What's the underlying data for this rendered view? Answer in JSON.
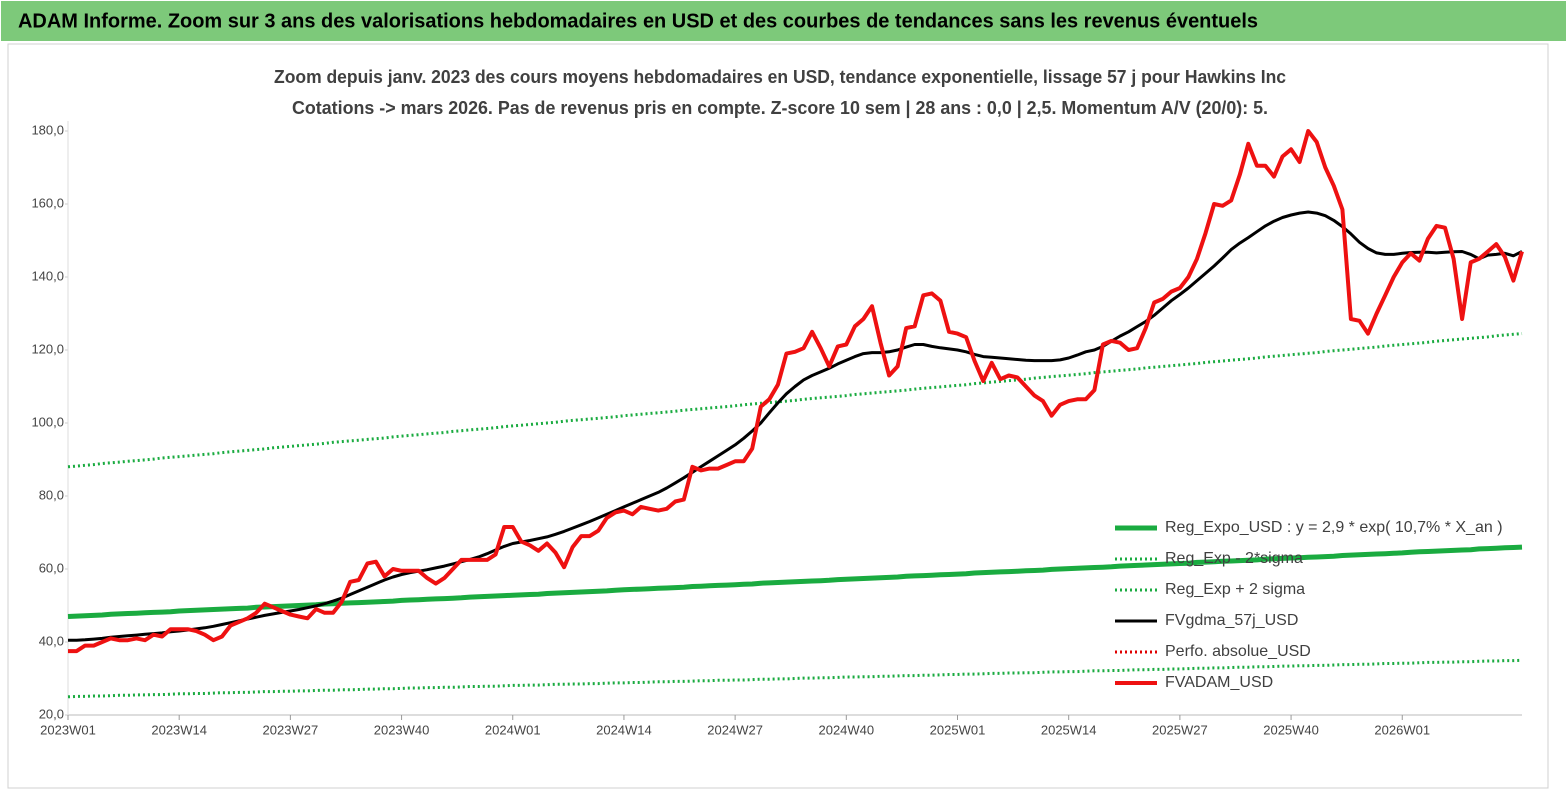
{
  "chart_data": {
    "type": "line",
    "header": "ADAM Informe. Zoom sur 3 ans des valorisations hebdomadaires en USD et des courbes de tendances sans les revenus éventuels",
    "title": "Zoom depuis janv. 2023 des cours moyens hebdomadaires en USD, tendance exponentielle, lissage 57 j pour Hawkins Inc",
    "subtitle": "Cotations -> mars 2026. Pas de revenus pris en compte. Z-score 10 sem | 28 ans : 0,0 | 2,5. Momentum A/V (20/0): 5.",
    "categories": [
      "2023W01",
      null,
      null,
      null,
      null,
      null,
      null,
      null,
      null,
      null,
      null,
      null,
      null,
      "2023W14",
      null,
      null,
      null,
      null,
      null,
      null,
      null,
      null,
      null,
      null,
      null,
      null,
      "2023W27",
      null,
      null,
      null,
      null,
      null,
      null,
      null,
      null,
      null,
      null,
      null,
      null,
      "2023W40",
      null,
      null,
      null,
      null,
      null,
      null,
      null,
      null,
      null,
      null,
      null,
      null,
      "2024W01",
      null,
      null,
      null,
      null,
      null,
      null,
      null,
      null,
      null,
      null,
      null,
      null,
      "2024W14",
      null,
      null,
      null,
      null,
      null,
      null,
      null,
      null,
      null,
      null,
      null,
      null,
      "2024W27",
      null,
      null,
      null,
      null,
      null,
      null,
      null,
      null,
      null,
      null,
      null,
      null,
      "2024W40",
      null,
      null,
      null,
      null,
      null,
      null,
      null,
      null,
      null,
      null,
      null,
      null,
      "2025W01",
      null,
      null,
      null,
      null,
      null,
      null,
      null,
      null,
      null,
      null,
      null,
      null,
      "2025W14",
      null,
      null,
      null,
      null,
      null,
      null,
      null,
      null,
      null,
      null,
      null,
      null,
      "2025W27",
      null,
      null,
      null,
      null,
      null,
      null,
      null,
      null,
      null,
      null,
      null,
      null,
      "2025W40",
      null,
      null,
      null,
      null,
      null,
      null,
      null,
      null,
      null,
      null,
      null,
      null,
      "2026W01",
      null,
      null,
      null,
      null,
      null,
      null,
      null,
      null,
      null,
      null,
      null,
      null,
      null,
      null
    ],
    "ylim": [
      20,
      180
    ],
    "yticks": [
      {
        "value": 20,
        "label": "20,0"
      },
      {
        "value": 40,
        "label": "40,0"
      },
      {
        "value": 60,
        "label": "60,0"
      },
      {
        "value": 80,
        "label": "80,0"
      },
      {
        "value": 100,
        "label": "100,0"
      },
      {
        "value": 120,
        "label": "120,0"
      },
      {
        "value": 140,
        "label": "140,0"
      },
      {
        "value": 160,
        "label": "160,0"
      },
      {
        "value": 180,
        "label": "180,0"
      }
    ],
    "grid": false,
    "legend": "right",
    "series": [
      {
        "name": "Reg_Expo_USD : y = 2,9 * exp( 10,7% *  X_an )",
        "color": "#1aab40",
        "style": "solid",
        "width": 5,
        "values": [
          47.0,
          47.1,
          47.2,
          47.3,
          47.4,
          47.6,
          47.7,
          47.8,
          47.9,
          48.0,
          48.1,
          48.2,
          48.3,
          48.5,
          48.6,
          48.7,
          48.8,
          48.9,
          49.0,
          49.1,
          49.2,
          49.3,
          49.5,
          49.6,
          49.7,
          49.8,
          49.9,
          50.0,
          50.1,
          50.2,
          50.4,
          50.5,
          50.6,
          50.7,
          50.8,
          50.9,
          51.0,
          51.1,
          51.2,
          51.4,
          51.5,
          51.6,
          51.7,
          51.8,
          51.9,
          52.0,
          52.1,
          52.3,
          52.4,
          52.5,
          52.6,
          52.7,
          52.8,
          52.9,
          53.0,
          53.1,
          53.3,
          53.4,
          53.5,
          53.6,
          53.7,
          53.8,
          53.9,
          54.0,
          54.2,
          54.3,
          54.4,
          54.5,
          54.6,
          54.7,
          54.8,
          54.9,
          55.0,
          55.2,
          55.3,
          55.4,
          55.5,
          55.6,
          55.7,
          55.8,
          55.9,
          56.1,
          56.2,
          56.3,
          56.4,
          56.5,
          56.6,
          56.7,
          56.8,
          56.9,
          57.1,
          57.2,
          57.3,
          57.4,
          57.5,
          57.6,
          57.7,
          57.8,
          58.0,
          58.1,
          58.2,
          58.3,
          58.4,
          58.5,
          58.6,
          58.7,
          58.9,
          59.0,
          59.1,
          59.2,
          59.3,
          59.4,
          59.5,
          59.6,
          59.7,
          59.9,
          60.0,
          60.1,
          60.2,
          60.3,
          60.4,
          60.5,
          60.6,
          60.8,
          60.9,
          61.0,
          61.1,
          61.2,
          61.3,
          61.4,
          61.5,
          61.6,
          61.8,
          61.9,
          62.0,
          62.1,
          62.2,
          62.3,
          62.4,
          62.5,
          62.7,
          62.8,
          62.9,
          63.0,
          63.1,
          63.2,
          63.3,
          63.4,
          63.5,
          63.7,
          63.8,
          63.9,
          64.0,
          64.1,
          64.2,
          64.3,
          64.4,
          64.6,
          64.7,
          64.8,
          64.9,
          65.0,
          65.1,
          65.2,
          65.3,
          65.5,
          65.6,
          65.7,
          65.8,
          65.9,
          66.0
        ]
      },
      {
        "name": "Reg_Exp - 2*sigma",
        "color": "#1aab40",
        "style": "dotted",
        "width": 3,
        "values": [
          25.0,
          25.1,
          25.1,
          25.2,
          25.2,
          25.3,
          25.4,
          25.4,
          25.5,
          25.5,
          25.6,
          25.6,
          25.7,
          25.8,
          25.8,
          25.9,
          25.9,
          26.0,
          26.1,
          26.1,
          26.2,
          26.2,
          26.3,
          26.4,
          26.4,
          26.5,
          26.5,
          26.6,
          26.6,
          26.7,
          26.8,
          26.8,
          26.9,
          26.9,
          27.0,
          27.1,
          27.1,
          27.2,
          27.2,
          27.3,
          27.4,
          27.4,
          27.5,
          27.5,
          27.6,
          27.6,
          27.7,
          27.8,
          27.8,
          27.9,
          27.9,
          28.0,
          28.1,
          28.1,
          28.2,
          28.2,
          28.3,
          28.4,
          28.4,
          28.5,
          28.5,
          28.6,
          28.6,
          28.7,
          28.8,
          28.8,
          28.9,
          28.9,
          29.0,
          29.1,
          29.1,
          29.2,
          29.2,
          29.3,
          29.4,
          29.4,
          29.5,
          29.5,
          29.6,
          29.6,
          29.7,
          29.8,
          29.8,
          29.9,
          29.9,
          30.0,
          30.1,
          30.1,
          30.2,
          30.2,
          30.3,
          30.4,
          30.4,
          30.5,
          30.5,
          30.6,
          30.6,
          30.7,
          30.8,
          30.8,
          30.9,
          30.9,
          31.0,
          31.1,
          31.1,
          31.2,
          31.2,
          31.3,
          31.4,
          31.4,
          31.5,
          31.5,
          31.6,
          31.6,
          31.7,
          31.8,
          31.8,
          31.9,
          31.9,
          32.0,
          32.1,
          32.1,
          32.2,
          32.2,
          32.3,
          32.4,
          32.4,
          32.5,
          32.5,
          32.6,
          32.6,
          32.7,
          32.8,
          32.8,
          32.9,
          32.9,
          33.0,
          33.1,
          33.1,
          33.2,
          33.2,
          33.3,
          33.4,
          33.4,
          33.5,
          33.5,
          33.6,
          33.6,
          33.7,
          33.8,
          33.8,
          33.9,
          33.9,
          34.0,
          34.1,
          34.1,
          34.2,
          34.2,
          34.3,
          34.4,
          34.4,
          34.5,
          34.5,
          34.6,
          34.6,
          34.7,
          34.8,
          34.8,
          34.9,
          34.9,
          35.0
        ]
      },
      {
        "name": "Reg_Exp + 2 sigma",
        "color": "#1aab40",
        "style": "dotted",
        "width": 3,
        "values": [
          88.0,
          88.2,
          88.4,
          88.6,
          88.9,
          89.1,
          89.3,
          89.5,
          89.7,
          89.9,
          90.1,
          90.4,
          90.6,
          90.8,
          91.0,
          91.2,
          91.4,
          91.6,
          91.9,
          92.1,
          92.3,
          92.5,
          92.7,
          92.9,
          93.2,
          93.4,
          93.6,
          93.8,
          94.0,
          94.2,
          94.4,
          94.7,
          94.9,
          95.1,
          95.3,
          95.5,
          95.7,
          95.9,
          96.2,
          96.4,
          96.6,
          96.8,
          97.0,
          97.2,
          97.4,
          97.7,
          97.9,
          98.1,
          98.3,
          98.5,
          98.7,
          99.0,
          99.2,
          99.4,
          99.6,
          99.8,
          100.0,
          100.2,
          100.5,
          100.7,
          100.9,
          101.1,
          101.3,
          101.5,
          101.7,
          102.0,
          102.2,
          102.4,
          102.6,
          102.8,
          103.0,
          103.2,
          103.5,
          103.7,
          103.9,
          104.1,
          104.3,
          104.5,
          104.7,
          105.0,
          105.2,
          105.4,
          105.6,
          105.8,
          106.0,
          106.2,
          106.5,
          106.7,
          106.9,
          107.1,
          107.3,
          107.5,
          107.8,
          108.0,
          108.2,
          108.4,
          108.6,
          108.8,
          109.0,
          109.3,
          109.5,
          109.7,
          109.9,
          110.1,
          110.3,
          110.5,
          110.8,
          111.0,
          111.2,
          111.4,
          111.6,
          111.8,
          112.0,
          112.3,
          112.5,
          112.7,
          112.9,
          113.1,
          113.3,
          113.5,
          113.8,
          114.0,
          114.2,
          114.4,
          114.6,
          114.8,
          115.1,
          115.3,
          115.5,
          115.7,
          115.9,
          116.1,
          116.3,
          116.6,
          116.8,
          117.0,
          117.2,
          117.4,
          117.6,
          117.8,
          118.1,
          118.3,
          118.5,
          118.7,
          118.9,
          119.1,
          119.3,
          119.6,
          119.8,
          120.0,
          120.2,
          120.4,
          120.6,
          120.8,
          121.1,
          121.3,
          121.5,
          121.7,
          121.9,
          122.1,
          122.4,
          122.6,
          122.8,
          123.0,
          123.2,
          123.4,
          123.6,
          123.9,
          124.1,
          124.3,
          124.5
        ]
      },
      {
        "name": "FVgdma_57j_USD",
        "color": "#000000",
        "style": "solid",
        "width": 3,
        "values": [
          40.5,
          40.5,
          40.6,
          40.8,
          41.0,
          41.3,
          41.5,
          41.7,
          41.9,
          42.1,
          42.3,
          42.5,
          42.8,
          43.0,
          43.3,
          43.6,
          43.9,
          44.3,
          44.8,
          45.3,
          45.8,
          46.3,
          46.8,
          47.3,
          47.7,
          48.1,
          48.5,
          48.9,
          49.4,
          49.9,
          50.5,
          51.2,
          52.0,
          53.0,
          54.0,
          55.0,
          56.0,
          57.0,
          57.8,
          58.5,
          59.0,
          59.4,
          59.8,
          60.3,
          60.8,
          61.4,
          62.0,
          62.6,
          63.3,
          64.2,
          65.2,
          66.2,
          67.0,
          67.4,
          67.8,
          68.3,
          68.8,
          69.5,
          70.3,
          71.2,
          72.1,
          73.0,
          74.0,
          75.0,
          76.0,
          77.0,
          78.0,
          79.0,
          80.0,
          81.0,
          82.2,
          83.6,
          85.0,
          86.5,
          88.0,
          89.5,
          91.0,
          92.5,
          94.0,
          95.8,
          97.8,
          100.0,
          102.8,
          105.5,
          108.0,
          110.0,
          111.8,
          113.0,
          114.0,
          115.0,
          116.2,
          117.2,
          118.2,
          119.0,
          119.3,
          119.3,
          119.5,
          120.0,
          120.8,
          121.5,
          121.5,
          121.0,
          120.6,
          120.3,
          120.0,
          119.5,
          118.8,
          118.2,
          118.0,
          117.8,
          117.6,
          117.4,
          117.2,
          117.1,
          117.1,
          117.1,
          117.3,
          117.8,
          118.6,
          119.5,
          120.0,
          121.0,
          122.4,
          123.8,
          125.0,
          126.4,
          127.8,
          129.5,
          131.5,
          133.5,
          135.2,
          137.0,
          139.0,
          141.0,
          143.0,
          145.2,
          147.5,
          149.3,
          150.8,
          152.4,
          154.0,
          155.3,
          156.3,
          157.0,
          157.5,
          157.8,
          157.5,
          156.8,
          155.5,
          153.8,
          151.8,
          149.5,
          147.8,
          146.6,
          146.2,
          146.2,
          146.5,
          146.7,
          146.8,
          146.8,
          146.6,
          146.8,
          146.9,
          147.0,
          146.2,
          145.0,
          146.0,
          146.2,
          146.5,
          145.8,
          147.0
        ]
      },
      {
        "name": "Perfo. absolue_USD",
        "color": "#e00000",
        "style": "dotted",
        "width": 3
      },
      {
        "name": "FVADAM_USD",
        "color": "#ee1111",
        "style": "solid",
        "width": 4,
        "values": [
          37.5,
          37.5,
          39,
          39,
          40,
          41,
          40.5,
          40.5,
          41,
          40.5,
          42,
          41.5,
          43.5,
          43.5,
          43.5,
          43,
          42,
          40.5,
          41.5,
          44.5,
          45.5,
          46.5,
          48,
          50.5,
          49.5,
          48.5,
          47.5,
          47,
          46.5,
          49,
          48,
          48,
          51,
          56.5,
          57,
          61.5,
          62,
          58,
          60,
          59.5,
          59.5,
          59.5,
          57.5,
          56,
          57.5,
          60,
          62.5,
          62.5,
          62.5,
          62.5,
          64,
          71.5,
          71.5,
          67.5,
          66.5,
          65,
          67,
          64.5,
          60.5,
          66,
          69,
          69,
          70.5,
          74,
          75.5,
          76,
          75,
          77,
          76.5,
          76,
          76.5,
          78.5,
          79,
          88,
          87,
          87.5,
          87.5,
          88.5,
          89.5,
          89.5,
          93,
          104.5,
          106.5,
          110.5,
          119,
          119.5,
          120.5,
          125,
          120.5,
          115.5,
          121,
          121.5,
          126.5,
          128.5,
          132,
          122,
          113,
          115.5,
          126,
          126.5,
          135,
          135.5,
          133.5,
          125,
          124.5,
          123.5,
          117,
          111.5,
          116.5,
          112,
          113,
          112.5,
          110,
          107.5,
          106,
          102,
          105,
          106,
          106.5,
          106.5,
          109,
          121.5,
          122.5,
          122,
          120,
          120.5,
          126,
          133,
          134,
          136,
          137,
          140,
          145,
          152,
          160,
          159.5,
          161,
          168,
          176.5,
          170.5,
          170.5,
          167.5,
          173,
          175,
          171.5,
          180,
          177,
          170,
          165,
          158.5,
          128.5,
          128,
          124.5,
          130,
          135,
          140,
          144,
          146.5,
          144.5,
          150.5,
          154,
          153.5,
          145,
          128.5,
          144,
          145,
          147,
          149,
          145.5,
          139,
          147
        ]
      }
    ]
  }
}
